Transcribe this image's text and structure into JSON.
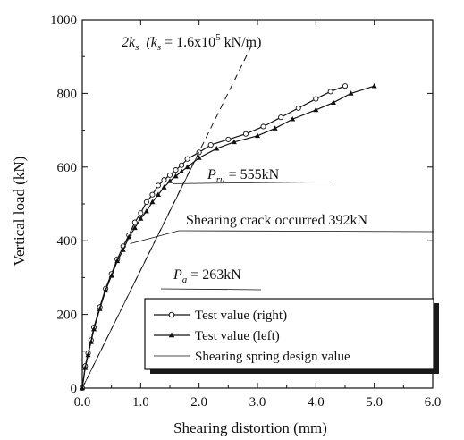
{
  "chart_data": {
    "type": "line",
    "xlabel": "Shearing distortion (mm)",
    "ylabel": "Vertical load (kN)",
    "xlim": [
      0,
      6
    ],
    "ylim": [
      0,
      1000
    ],
    "x_ticks": [
      "0.0",
      "1.0",
      "2.0",
      "3.0",
      "4.0",
      "5.0",
      "6.0"
    ],
    "y_ticks": [
      "0",
      "200",
      "400",
      "600",
      "800",
      "1000"
    ],
    "grid": false,
    "legend_position": "bottom-right",
    "series": [
      {
        "name": "Test value (right)",
        "marker": "open-circle",
        "x": [
          0.0,
          0.05,
          0.1,
          0.15,
          0.2,
          0.3,
          0.4,
          0.5,
          0.6,
          0.7,
          0.8,
          0.9,
          1.0,
          1.1,
          1.2,
          1.3,
          1.4,
          1.5,
          1.6,
          1.7,
          1.8,
          2.0,
          2.2,
          2.5,
          2.8,
          3.1,
          3.4,
          3.7,
          4.0,
          4.25,
          4.5
        ],
        "y": [
          0,
          60,
          95,
          130,
          165,
          220,
          270,
          310,
          350,
          385,
          415,
          450,
          475,
          505,
          525,
          550,
          565,
          578,
          592,
          605,
          622,
          640,
          660,
          675,
          690,
          710,
          735,
          760,
          785,
          805,
          820
        ]
      },
      {
        "name": "Test value (left)",
        "marker": "filled-triangle",
        "x": [
          0.0,
          0.05,
          0.1,
          0.15,
          0.2,
          0.3,
          0.4,
          0.5,
          0.6,
          0.7,
          0.8,
          0.9,
          1.0,
          1.1,
          1.2,
          1.3,
          1.4,
          1.5,
          1.6,
          1.7,
          1.8,
          2.0,
          2.3,
          2.6,
          3.0,
          3.3,
          3.6,
          4.0,
          4.3,
          4.6,
          5.0
        ],
        "y": [
          0,
          55,
          90,
          125,
          160,
          215,
          265,
          305,
          345,
          375,
          410,
          435,
          460,
          480,
          505,
          525,
          545,
          562,
          575,
          588,
          600,
          625,
          650,
          668,
          685,
          705,
          730,
          755,
          775,
          800,
          820
        ]
      },
      {
        "name": "Shearing spring design value",
        "marker": "none",
        "x": [
          0.0,
          2.0
        ],
        "y": [
          0,
          640
        ]
      }
    ],
    "reference_line": {
      "style": "dashed",
      "x": [
        0.0,
        2.9
      ],
      "y": [
        0,
        930
      ]
    },
    "annotations": {
      "stiffness_main": "2k",
      "stiffness_sub": "s",
      "stiffness_paren_open": "(k",
      "stiffness_paren_sub": "s",
      "stiffness_value": " = 1.6x10",
      "stiffness_exp": "5",
      "stiffness_unit": " kN/m)",
      "pru_main": "P",
      "pru_sub": "ru",
      "pru_value": " = 555kN",
      "pru_y": 555,
      "crack_text": "Shearing crack occurred 392kN",
      "crack_y": 392,
      "pa_main": "P",
      "pa_sub": "a",
      "pa_value": " = 263kN",
      "pa_y": 263
    }
  }
}
